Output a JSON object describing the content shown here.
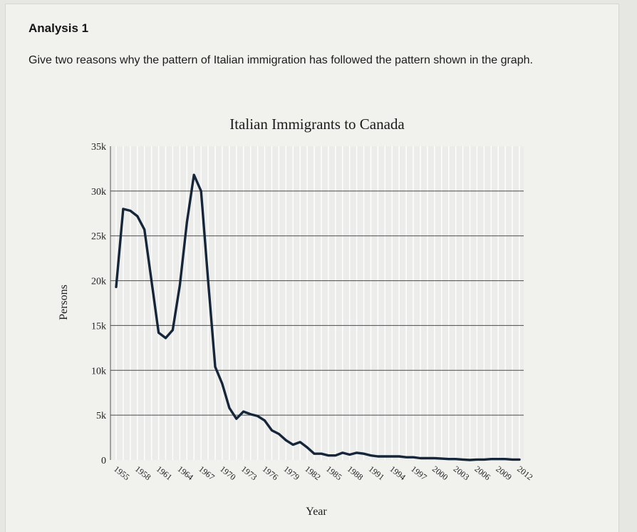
{
  "analysis": {
    "heading": "Analysis 1",
    "question": "Give two reasons why the pattern of Italian immigration has followed the pattern shown in the graph."
  },
  "chart_data": {
    "type": "line",
    "title": "Italian Immigrants to Canada",
    "xlabel": "Year",
    "ylabel": "Persons",
    "ylim": [
      0,
      35000
    ],
    "y_ticks": [
      {
        "value": 0,
        "label": "0"
      },
      {
        "value": 5000,
        "label": "5k"
      },
      {
        "value": 10000,
        "label": "10k"
      },
      {
        "value": 15000,
        "label": "15k"
      },
      {
        "value": 20000,
        "label": "20k"
      },
      {
        "value": 25000,
        "label": "25k"
      },
      {
        "value": 30000,
        "label": "30k"
      },
      {
        "value": 35000,
        "label": "35k"
      }
    ],
    "x_ticks": [
      1955,
      1958,
      1961,
      1964,
      1967,
      1970,
      1973,
      1976,
      1979,
      1982,
      1985,
      1988,
      1991,
      1994,
      1997,
      2000,
      2003,
      2006,
      2009,
      2012
    ],
    "grid": true,
    "series": [
      {
        "color": "#16263a",
        "x": [
          1955,
          1956,
          1957,
          1958,
          1959,
          1960,
          1961,
          1962,
          1963,
          1964,
          1965,
          1966,
          1967,
          1968,
          1969,
          1970,
          1971,
          1972,
          1973,
          1974,
          1975,
          1976,
          1977,
          1978,
          1979,
          1980,
          1981,
          1982,
          1983,
          1984,
          1985,
          1986,
          1987,
          1988,
          1989,
          1990,
          1991,
          1992,
          1993,
          1994,
          1995,
          1996,
          1997,
          1998,
          1999,
          2000,
          2001,
          2002,
          2003,
          2004,
          2005,
          2006,
          2007,
          2008,
          2009,
          2010,
          2011,
          2012
        ],
        "values": [
          19300,
          28000,
          27800,
          27200,
          25700,
          20000,
          14200,
          13600,
          14500,
          19500,
          26500,
          31800,
          30000,
          20000,
          10400,
          8500,
          5800,
          4600,
          5400,
          5100,
          4900,
          4400,
          3300,
          2900,
          2200,
          1700,
          2000,
          1400,
          700,
          700,
          500,
          500,
          800,
          600,
          800,
          700,
          500,
          400,
          400,
          400,
          400,
          300,
          300,
          200,
          200,
          200,
          150,
          100,
          100,
          50,
          0,
          50,
          50,
          100,
          100,
          100,
          50,
          50
        ]
      }
    ]
  }
}
